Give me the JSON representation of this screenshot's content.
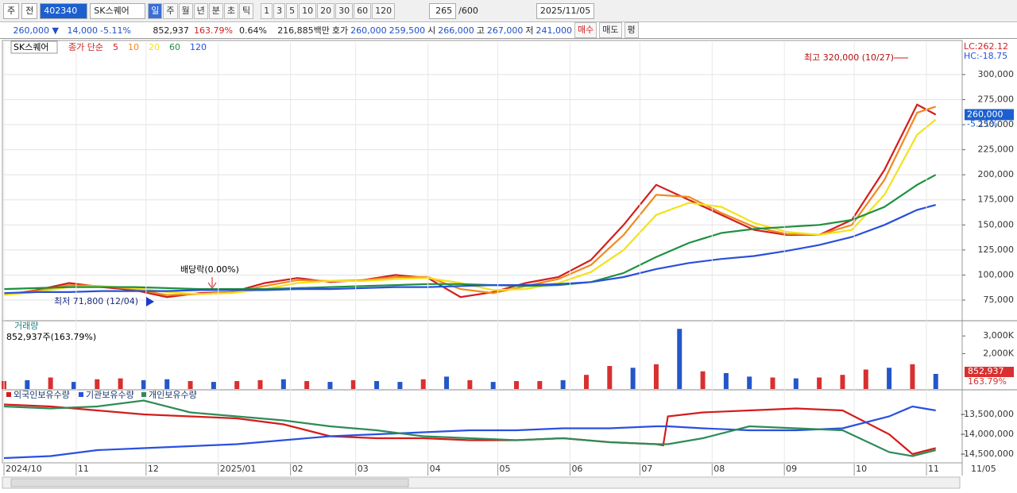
{
  "toolbar": {
    "market": "주",
    "mode": "전",
    "code": "402340",
    "stock_name": "SK스퀘어",
    "periods": [
      "일",
      "주",
      "월",
      "년",
      "분",
      "초",
      "틱"
    ],
    "intervals": [
      "1",
      "3",
      "5",
      "10",
      "20",
      "30",
      "60",
      "120"
    ],
    "count": "265",
    "count_max": "/600",
    "date": "2025/11/05"
  },
  "quote_bar": {
    "price": "260,000 ▼",
    "change": "14,000",
    "change_pct": "-5.11%",
    "volume": "852,937",
    "volume_pct": "163.79%",
    "turnover": "0.64%",
    "amount": "216,885백만",
    "ask_label": "호가",
    "ask": "260,000",
    "bid": "259,500",
    "open_label": "시",
    "open": "266,000",
    "high_label": "고",
    "high": "267,000",
    "low_label": "저",
    "low": "241,000",
    "buy": "매수",
    "sell": "매도",
    "avg": "평"
  },
  "chart_data": [
    {
      "type": "line",
      "stock_label": "SK스퀘어",
      "legend_prefix": "종가 단순",
      "right_top": [
        "LC:262.12",
        "HC:-18.75"
      ],
      "price_tag": "260,000",
      "price_tag_value": 260000,
      "change_tag": "-5.11%",
      "annotations": [
        "최고 320,000 (10/27)",
        "최저 71,800 (12/04)",
        "배당락(0.00%)"
      ],
      "x": [
        0,
        14,
        28,
        42,
        56,
        70,
        84,
        98,
        112,
        126,
        140,
        154,
        168,
        182,
        196,
        210,
        224,
        238,
        252,
        266,
        280,
        294,
        308,
        322,
        336,
        350,
        364,
        378,
        392,
        400
      ],
      "xlim": [
        0,
        411
      ],
      "ylim": [
        56000,
        332400
      ],
      "yticks": [
        {
          "value": 75000,
          "label": "75,000"
        },
        {
          "value": 100000,
          "label": "100,000"
        },
        {
          "value": 125000,
          "label": "125,000"
        },
        {
          "value": 150000,
          "label": "150,000"
        },
        {
          "value": 175000,
          "label": "175,000"
        },
        {
          "value": 200000,
          "label": "200,000"
        },
        {
          "value": 225000,
          "label": "225,000"
        },
        {
          "value": 250000,
          "label": "250,000"
        },
        {
          "value": 275000,
          "label": "275,000"
        },
        {
          "value": 300000,
          "label": "300,000"
        }
      ],
      "grid": true,
      "series": [
        {
          "name": "5",
          "color": "#d21e1e",
          "values": [
            80000,
            85000,
            92000,
            88000,
            85000,
            78000,
            82000,
            83000,
            92000,
            97000,
            93000,
            95000,
            100000,
            97000,
            78000,
            83000,
            92000,
            98000,
            115000,
            150000,
            190000,
            175000,
            160000,
            145000,
            140000,
            140000,
            155000,
            205000,
            270000,
            260000
          ]
        },
        {
          "name": "10",
          "color": "#f08a20",
          "values": [
            81000,
            84000,
            90000,
            89000,
            86000,
            80000,
            81000,
            83000,
            89000,
            95000,
            94000,
            95000,
            98000,
            98000,
            86000,
            82000,
            89000,
            96000,
            110000,
            140000,
            180000,
            178000,
            162000,
            148000,
            141000,
            140000,
            150000,
            195000,
            262000,
            268000
          ]
        },
        {
          "name": "20",
          "color": "#f2e21c",
          "values": [
            80000,
            83000,
            88000,
            89000,
            87000,
            83000,
            81000,
            82000,
            86000,
            92000,
            94000,
            94000,
            96000,
            97000,
            92000,
            85000,
            86000,
            92000,
            103000,
            125000,
            160000,
            172000,
            168000,
            152000,
            143000,
            140000,
            145000,
            180000,
            240000,
            255000
          ]
        },
        {
          "name": "60",
          "color": "#1e9040",
          "values": [
            86000,
            87000,
            88000,
            88000,
            88000,
            87000,
            86000,
            86000,
            86000,
            87000,
            88000,
            89000,
            90000,
            91000,
            91000,
            90000,
            89000,
            90000,
            93000,
            102000,
            118000,
            132000,
            142000,
            146000,
            148000,
            150000,
            155000,
            168000,
            190000,
            200000
          ]
        },
        {
          "name": "120",
          "color": "#2a50d8",
          "values": [
            82000,
            83000,
            83000,
            84000,
            84000,
            84000,
            85000,
            85000,
            85000,
            86000,
            86000,
            87000,
            88000,
            88000,
            89000,
            90000,
            90000,
            91000,
            93000,
            98000,
            106000,
            112000,
            116000,
            119000,
            124000,
            130000,
            138000,
            150000,
            165000,
            170000
          ]
        }
      ]
    },
    {
      "type": "bar",
      "title": "거래량",
      "subtitle": "852,937주(163.79%)",
      "last_label": "852,937",
      "last_pct": "163.79%",
      "x": [
        0,
        10,
        20,
        30,
        40,
        50,
        60,
        70,
        80,
        90,
        100,
        110,
        120,
        130,
        140,
        150,
        160,
        170,
        180,
        190,
        200,
        210,
        220,
        230,
        240,
        250,
        260,
        270,
        280,
        290,
        300,
        310,
        320,
        330,
        340,
        350,
        360,
        370,
        380,
        390,
        400
      ],
      "xlim": [
        0,
        411
      ],
      "ylim": [
        0,
        3860000
      ],
      "yticks": [
        {
          "value": 2000000,
          "label": "2,000K"
        },
        {
          "value": 3000000,
          "label": "3,000K"
        }
      ],
      "values": [
        450000,
        500000,
        650000,
        400000,
        550000,
        600000,
        500000,
        550000,
        450000,
        400000,
        450000,
        500000,
        550000,
        450000,
        400000,
        500000,
        450000,
        400000,
        550000,
        700000,
        500000,
        400000,
        450000,
        450000,
        500000,
        800000,
        1300000,
        1200000,
        1400000,
        3400000,
        1000000,
        900000,
        700000,
        650000,
        600000,
        650000,
        800000,
        1100000,
        1200000,
        1400000,
        852937
      ],
      "colors": [
        "#d83030",
        "#2456c8",
        "#d83030",
        "#2456c8",
        "#d83030",
        "#d83030",
        "#2456c8",
        "#2456c8",
        "#d83030",
        "#2456c8",
        "#d83030",
        "#d83030",
        "#2456c8",
        "#d83030",
        "#2456c8",
        "#d83030",
        "#2456c8",
        "#2456c8",
        "#d83030",
        "#2456c8",
        "#d83030",
        "#2456c8",
        "#d83030",
        "#d83030",
        "#2456c8",
        "#d83030",
        "#d83030",
        "#2456c8",
        "#d83030",
        "#2456c8",
        "#d83030",
        "#2456c8",
        "#2456c8",
        "#d83030",
        "#2456c8",
        "#d83030",
        "#d83030",
        "#d83030",
        "#2456c8",
        "#d83030",
        "#2456c8"
      ]
    },
    {
      "type": "line",
      "x": [
        0,
        20,
        40,
        60,
        80,
        100,
        120,
        140,
        160,
        180,
        200,
        220,
        240,
        260,
        280,
        283,
        285,
        300,
        320,
        340,
        360,
        380,
        390,
        400
      ],
      "xlim": [
        0,
        411
      ],
      "ylim": [
        -14720000,
        -12880000
      ],
      "yticks": [
        {
          "value": -14500000,
          "label": "-14,500,000"
        },
        {
          "value": -14000000,
          "label": "-14,000,000"
        },
        {
          "value": -13500000,
          "label": "-13,500,000"
        }
      ],
      "xticks": [
        {
          "value": 0,
          "label": "2024/10"
        },
        {
          "value": 31,
          "label": "11"
        },
        {
          "value": 61,
          "label": "12"
        },
        {
          "value": 92,
          "label": "2025/01"
        },
        {
          "value": 123,
          "label": "02"
        },
        {
          "value": 151,
          "label": "03"
        },
        {
          "value": 182,
          "label": "04"
        },
        {
          "value": 212,
          "label": "05"
        },
        {
          "value": 243,
          "label": "06"
        },
        {
          "value": 273,
          "label": "07"
        },
        {
          "value": 304,
          "label": "08"
        },
        {
          "value": 335,
          "label": "09"
        },
        {
          "value": 365,
          "label": "10"
        },
        {
          "value": 396,
          "label": "11"
        }
      ],
      "x_end_label": "11/05",
      "series": [
        {
          "name": "외국인보유수량",
          "color": "#d41c1c",
          "values": [
            -13250000,
            -13300000,
            -13400000,
            -13500000,
            -13550000,
            -13600000,
            -13750000,
            -14050000,
            -14100000,
            -14100000,
            -14150000,
            -14150000,
            -14100000,
            -14200000,
            -14250000,
            -14280000,
            -13550000,
            -13450000,
            -13400000,
            -13350000,
            -13400000,
            -14000000,
            -14500000,
            -14350000
          ]
        },
        {
          "name": "기관보유수량",
          "color": "#2a50e0",
          "values": [
            -14600000,
            -14550000,
            -14400000,
            -14350000,
            -14300000,
            -14250000,
            -14150000,
            -14050000,
            -14000000,
            -13950000,
            -13900000,
            -13900000,
            -13850000,
            -13850000,
            -13800000,
            -13800000,
            -13800000,
            -13850000,
            -13900000,
            -13900000,
            -13850000,
            -13550000,
            -13300000,
            -13400000
          ]
        },
        {
          "name": "개인보유수량",
          "color": "#2e8b57",
          "values": [
            -13300000,
            -13350000,
            -13300000,
            -13150000,
            -13450000,
            -13550000,
            -13650000,
            -13800000,
            -13900000,
            -14050000,
            -14100000,
            -14150000,
            -14100000,
            -14200000,
            -14250000,
            -14250000,
            -14250000,
            -14100000,
            -13800000,
            -13850000,
            -13900000,
            -14450000,
            -14550000,
            -14400000
          ]
        }
      ]
    }
  ]
}
